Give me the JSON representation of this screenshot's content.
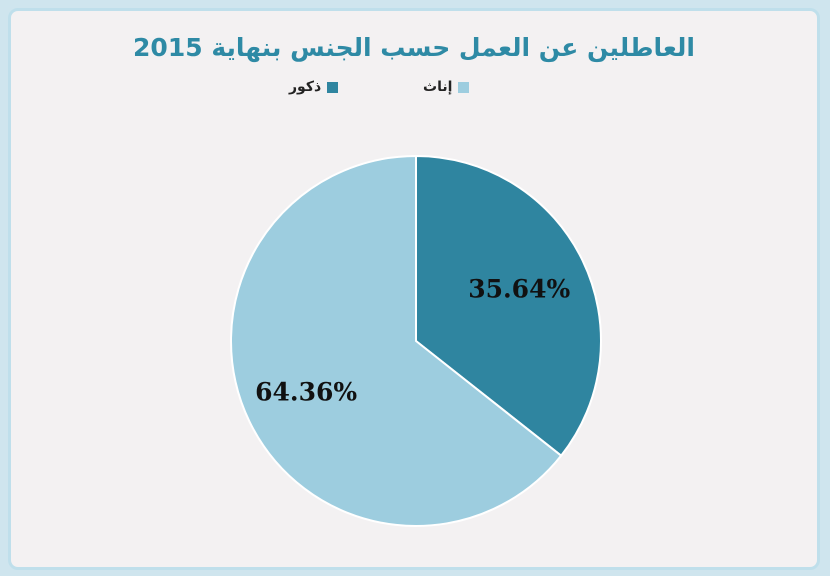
{
  "chart_data": {
    "type": "pie",
    "title": "العاطلين عن العمل حسب الجنس بنهاية 2015",
    "categories": [
      "ذكور",
      "إناث"
    ],
    "values": [
      35.64,
      64.36
    ],
    "labels": [
      "35.64%",
      "64.36%"
    ],
    "colors": [
      "#2f85a0",
      "#9dcddf"
    ],
    "legend": "top"
  }
}
